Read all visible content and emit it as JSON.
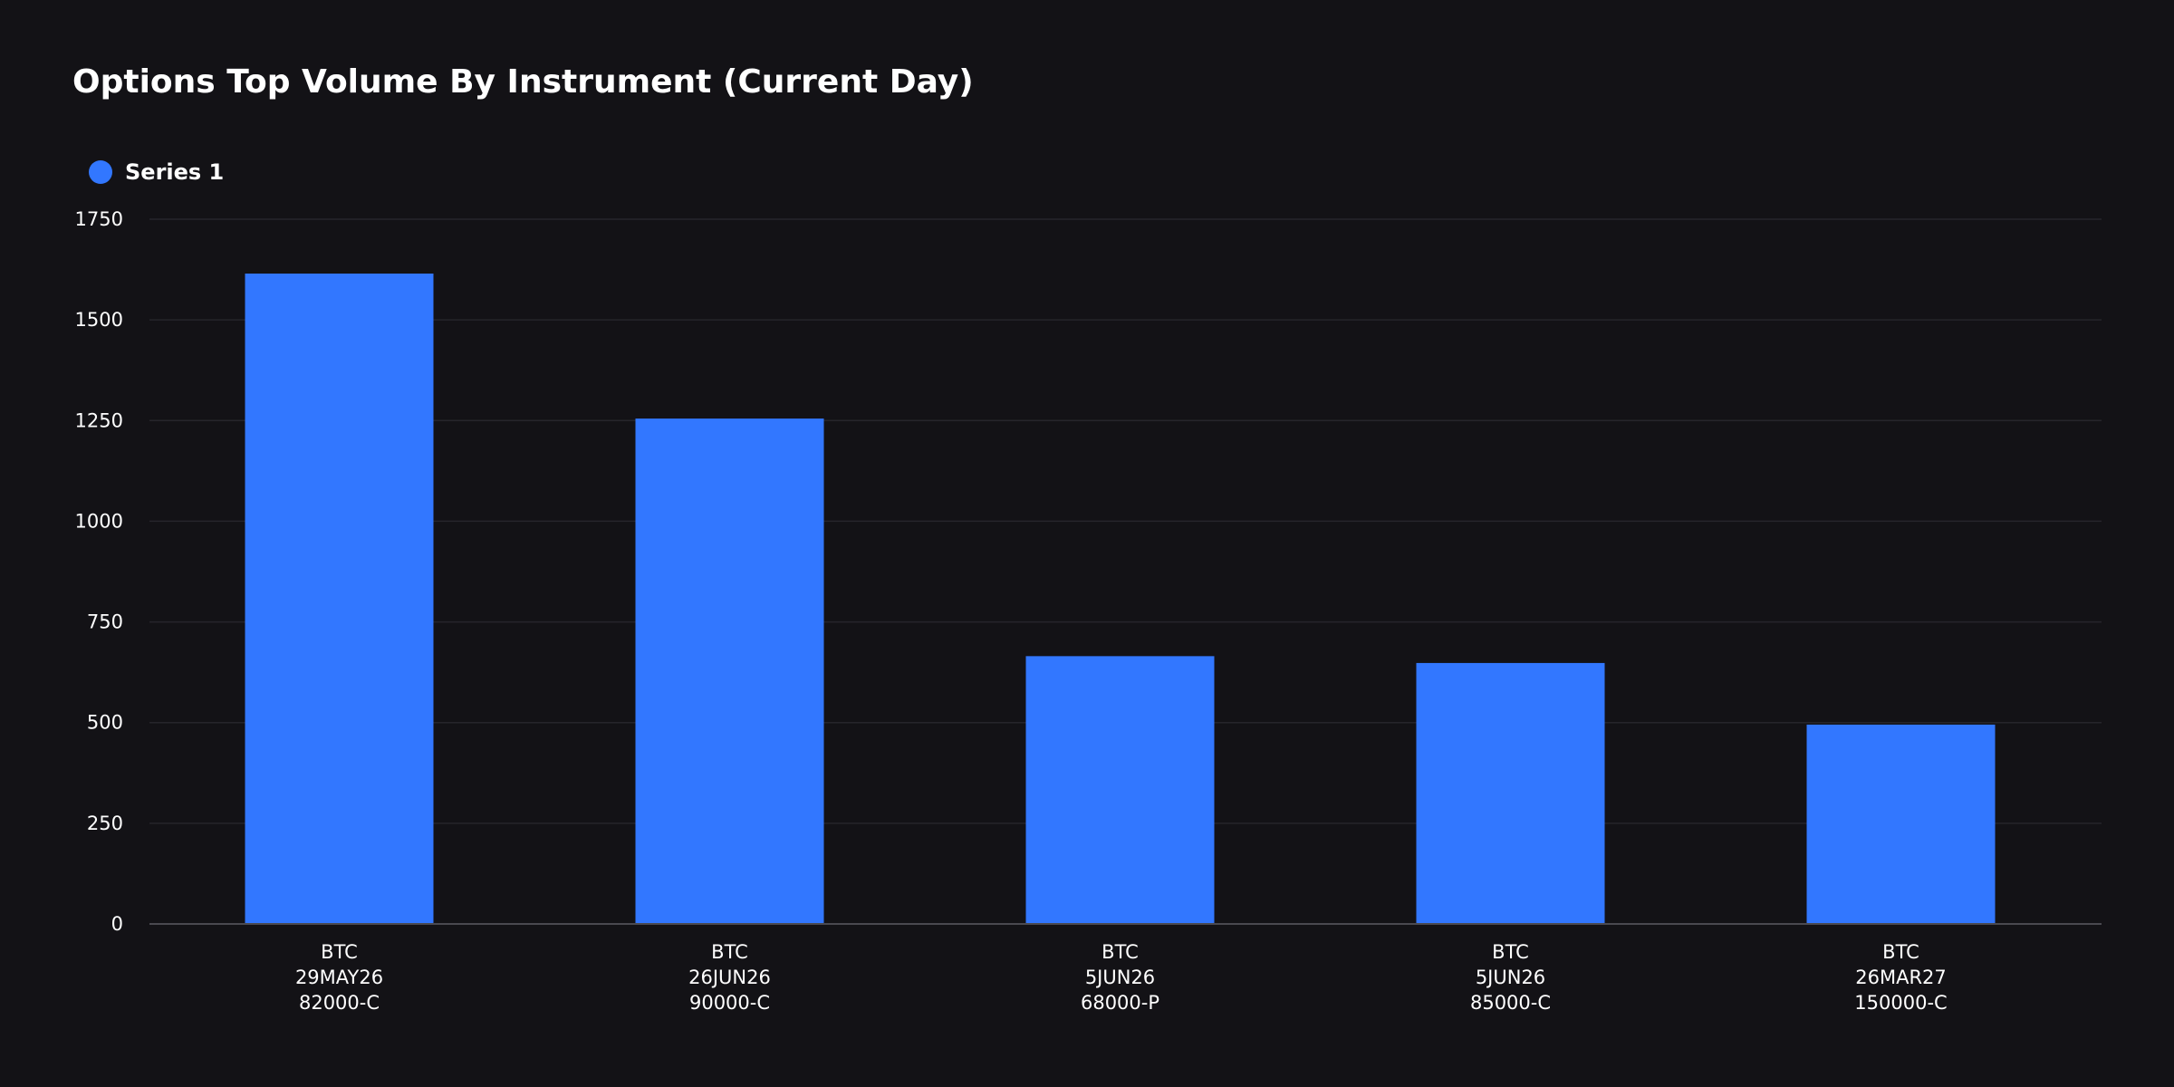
{
  "colors": {
    "background": "#131216",
    "bar": "#3277ff",
    "grid": "#26252b",
    "axis": "#4a4950"
  },
  "chart_data": {
    "type": "bar",
    "title": "Options Top Volume By Instrument (Current Day)",
    "legend_position": "top-left",
    "grid": true,
    "ylim": [
      0,
      1750
    ],
    "yticks": [
      "0",
      "250",
      "500",
      "750",
      "1000",
      "1250",
      "1500",
      "1750"
    ],
    "categories": [
      [
        "BTC",
        "29MAY26",
        "82000-C"
      ],
      [
        "BTC",
        "26JUN26",
        "90000-C"
      ],
      [
        "BTC",
        "5JUN26",
        "68000-P"
      ],
      [
        "BTC",
        "5JUN26",
        "85000-C"
      ],
      [
        "BTC",
        "26MAR27",
        "150000-C"
      ]
    ],
    "series": [
      {
        "name": "Series 1",
        "values": [
          1615,
          1255,
          665,
          648,
          495
        ]
      }
    ]
  }
}
